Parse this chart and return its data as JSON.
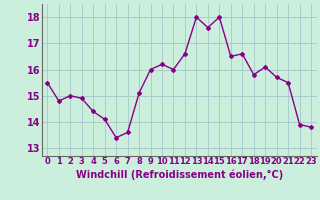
{
  "x": [
    0,
    1,
    2,
    3,
    4,
    5,
    6,
    7,
    8,
    9,
    10,
    11,
    12,
    13,
    14,
    15,
    16,
    17,
    18,
    19,
    20,
    21,
    22,
    23
  ],
  "y": [
    15.5,
    14.8,
    15.0,
    14.9,
    14.4,
    14.1,
    13.4,
    13.6,
    15.1,
    16.0,
    16.2,
    16.0,
    16.6,
    18.0,
    17.6,
    18.0,
    16.5,
    16.6,
    15.8,
    16.1,
    15.7,
    15.5,
    13.9,
    13.8
  ],
  "line_color": "#880088",
  "marker": "D",
  "markersize": 2,
  "linewidth": 1.0,
  "bg_color": "#cceedd",
  "grid_color": "#aacccc",
  "xlabel": "Windchill (Refroidissement éolien,°C)",
  "xlabel_fontsize": 7,
  "ytick_fontsize": 7,
  "xtick_fontsize": 6,
  "yticks": [
    13,
    14,
    15,
    16,
    17,
    18
  ],
  "xticks": [
    0,
    1,
    2,
    3,
    4,
    5,
    6,
    7,
    8,
    9,
    10,
    11,
    12,
    13,
    14,
    15,
    16,
    17,
    18,
    19,
    20,
    21,
    22,
    23
  ],
  "ylim": [
    12.7,
    18.5
  ],
  "xlim": [
    -0.5,
    23.5
  ]
}
